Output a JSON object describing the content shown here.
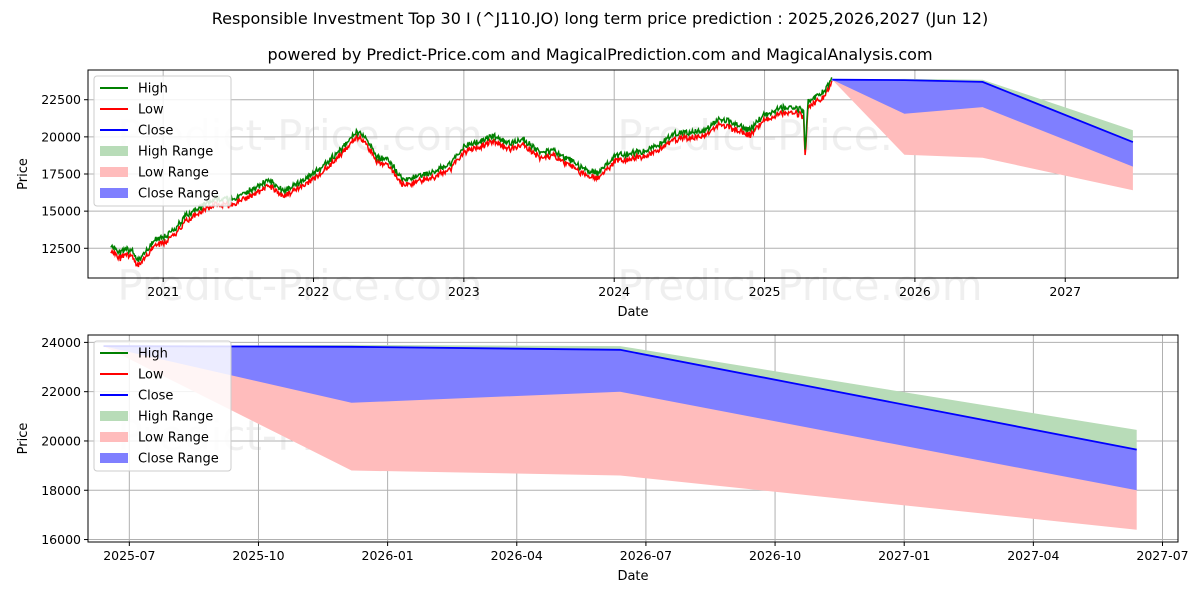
{
  "title": "Responsible Investment Top 30 I (^J110.JO) long term price prediction : 2025,2026,2027 (Jun 12)",
  "subtitle": "powered by Predict-Price.com and MagicalPrediction.com and MagicalAnalysis.com",
  "watermark": "Predict-Price.com",
  "colors": {
    "high": "#008000",
    "low": "#ff0000",
    "close": "#0000ff",
    "high_range": "#b8dcb8",
    "low_range": "#ffbcbc",
    "close_range": "#7f7fff"
  },
  "chart_data": [
    {
      "type": "line",
      "panel": "top",
      "xlabel": "Date",
      "ylabel": "Price",
      "xlim": [
        2020.5,
        2027.75
      ],
      "ylim": [
        10500,
        24500
      ],
      "xticks": [
        2021,
        2022,
        2023,
        2024,
        2025,
        2026,
        2027
      ],
      "xtick_labels": [
        "2021",
        "2022",
        "2023",
        "2024",
        "2025",
        "2026",
        "2027"
      ],
      "yticks": [
        12500,
        15000,
        17500,
        20000,
        22500
      ],
      "ytick_labels": [
        "12500",
        "15000",
        "17500",
        "20000",
        "22500"
      ],
      "grid": true,
      "legend": [
        "High",
        "Low",
        "Close",
        "High Range",
        "Low Range",
        "Close Range"
      ],
      "legend_position": "upper-left",
      "history_anchors": [
        [
          2020.65,
          12600
        ],
        [
          2020.72,
          12000
        ],
        [
          2020.78,
          12300
        ],
        [
          2020.83,
          11500
        ],
        [
          2020.95,
          12900
        ],
        [
          2021.05,
          13300
        ],
        [
          2021.15,
          14500
        ],
        [
          2021.25,
          15100
        ],
        [
          2021.35,
          15700
        ],
        [
          2021.45,
          15600
        ],
        [
          2021.5,
          15800
        ],
        [
          2021.6,
          16300
        ],
        [
          2021.7,
          16900
        ],
        [
          2021.8,
          16200
        ],
        [
          2021.9,
          16700
        ],
        [
          2022.0,
          17300
        ],
        [
          2022.1,
          18200
        ],
        [
          2022.2,
          19200
        ],
        [
          2022.28,
          20200
        ],
        [
          2022.35,
          19800
        ],
        [
          2022.42,
          18500
        ],
        [
          2022.5,
          18200
        ],
        [
          2022.6,
          16900
        ],
        [
          2022.7,
          17200
        ],
        [
          2022.8,
          17500
        ],
        [
          2022.9,
          17900
        ],
        [
          2023.0,
          19200
        ],
        [
          2023.1,
          19500
        ],
        [
          2023.2,
          19900
        ],
        [
          2023.3,
          19400
        ],
        [
          2023.4,
          19600
        ],
        [
          2023.5,
          18800
        ],
        [
          2023.6,
          18900
        ],
        [
          2023.7,
          18300
        ],
        [
          2023.8,
          17600
        ],
        [
          2023.9,
          17400
        ],
        [
          2024.0,
          18500
        ],
        [
          2024.1,
          18700
        ],
        [
          2024.2,
          18900
        ],
        [
          2024.3,
          19300
        ],
        [
          2024.4,
          20000
        ],
        [
          2024.5,
          20100
        ],
        [
          2024.6,
          20200
        ],
        [
          2024.7,
          21100
        ],
        [
          2024.8,
          20700
        ],
        [
          2024.9,
          20300
        ],
        [
          2025.0,
          21300
        ],
        [
          2025.1,
          21700
        ],
        [
          2025.2,
          21900
        ],
        [
          2025.26,
          21500
        ],
        [
          2025.27,
          18800
        ],
        [
          2025.29,
          22300
        ],
        [
          2025.38,
          22700
        ],
        [
          2025.45,
          23800
        ]
      ],
      "forecast": {
        "x": [
          2025.45,
          2025.93,
          2026.45,
          2027.45
        ],
        "close": [
          23850,
          23820,
          23700,
          19650
        ],
        "high_range_upper": [
          23850,
          23900,
          23850,
          20450
        ],
        "close_range_lower": [
          23850,
          21550,
          22000,
          18000
        ],
        "low_range_lower": [
          23850,
          18800,
          18600,
          16400
        ]
      }
    },
    {
      "type": "line",
      "panel": "bottom",
      "xlabel": "Date",
      "ylabel": "Price",
      "xlim": [
        2025.42,
        2027.53
      ],
      "ylim": [
        15900,
        24300
      ],
      "xticks": [
        2025.5,
        2025.75,
        2026.0,
        2026.25,
        2026.5,
        2026.75,
        2027.0,
        2027.25,
        2027.5
      ],
      "xtick_labels": [
        "2025-07",
        "2025-10",
        "2026-01",
        "2026-04",
        "2026-07",
        "2026-10",
        "2027-01",
        "2027-04",
        "2027-07"
      ],
      "yticks": [
        16000,
        18000,
        20000,
        22000,
        24000
      ],
      "ytick_labels": [
        "16000",
        "18000",
        "20000",
        "22000",
        "24000"
      ],
      "grid": true,
      "legend": [
        "High",
        "Low",
        "Close",
        "High Range",
        "Low Range",
        "Close Range"
      ],
      "legend_position": "upper-left",
      "forecast": {
        "x": [
          2025.45,
          2025.93,
          2026.45,
          2027.45
        ],
        "close": [
          23850,
          23820,
          23700,
          19650
        ],
        "high_range_upper": [
          23850,
          23900,
          23850,
          20450
        ],
        "close_range_lower": [
          23850,
          21550,
          22000,
          18000
        ],
        "low_range_lower": [
          23850,
          18800,
          18600,
          16400
        ]
      }
    }
  ]
}
